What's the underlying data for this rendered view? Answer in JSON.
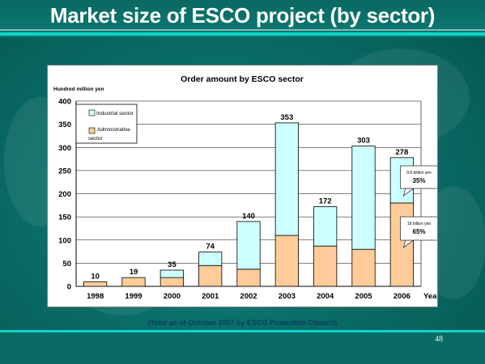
{
  "slide": {
    "title": "Market size of ESCO project (by sector)",
    "footnote": "(Total as of October 2007 by ESCO Promotion Council)",
    "page_number": "48"
  },
  "colors": {
    "background": "#0a6e69",
    "industrial": "#ccffff",
    "administrative": "#ffcc99",
    "title_text": "#ffffff"
  },
  "chart_data": {
    "type": "bar",
    "stacked": true,
    "title": "Order amount by ESCO sector",
    "ylabel": "Hundred million  yen",
    "xlabel": "Year",
    "categories": [
      "1998",
      "1999",
      "2000",
      "2001",
      "2002",
      "2003",
      "2004",
      "2005",
      "2006"
    ],
    "ylim": [
      0,
      400
    ],
    "yticks": [
      0,
      50,
      100,
      150,
      200,
      250,
      300,
      350,
      400
    ],
    "grid": true,
    "legend_position": "top-left",
    "series": [
      {
        "name": "Administrative sector",
        "color": "#ffcc99",
        "values": [
          10,
          19,
          19,
          45,
          37,
          110,
          87,
          80,
          180
        ]
      },
      {
        "name": "Industrial sector",
        "color": "#ccffff",
        "values": [
          0,
          0,
          16,
          29,
          103,
          243,
          85,
          223,
          98
        ]
      }
    ],
    "totals": [
      10,
      19,
      35,
      74,
      140,
      353,
      172,
      303,
      278
    ],
    "legend_labels": {
      "industrial": "Industrial sector",
      "administrative_line1": "Administrative",
      "administrative_line2": "sector"
    },
    "callouts": [
      {
        "line1": "9.8 billion yen",
        "line2": "35%"
      },
      {
        "line1": "18 billion yen",
        "line2": "65%"
      }
    ]
  }
}
